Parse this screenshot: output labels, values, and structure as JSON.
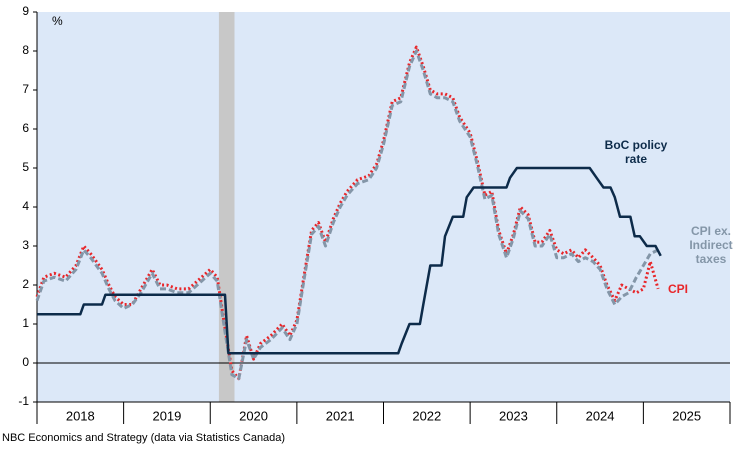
{
  "chart_data": {
    "type": "line",
    "unit_label": "%",
    "source": "NBC Economics and Strategy (data via Statistics Canada)",
    "xlim": [
      2018,
      2026
    ],
    "xticks": [
      2018,
      2019,
      2020,
      2021,
      2022,
      2023,
      2024,
      2025,
      2026
    ],
    "year_labels": [
      2018,
      2019,
      2020,
      2021,
      2022,
      2023,
      2024,
      2025
    ],
    "ylim": [
      -1,
      9
    ],
    "yticks": [
      -1,
      0,
      1,
      2,
      3,
      4,
      5,
      6,
      7,
      8,
      9
    ],
    "zero_line": 0,
    "shaded_ranges": [
      [
        2020.1,
        2020.28
      ]
    ],
    "background": "#dce8f8",
    "x": [
      2018.0,
      2018.08,
      2018.2,
      2018.33,
      2018.45,
      2018.54,
      2018.62,
      2018.75,
      2018.83,
      2018.9,
      2019.0,
      2019.1,
      2019.2,
      2019.33,
      2019.42,
      2019.5,
      2019.62,
      2019.75,
      2019.9,
      2020.0,
      2020.08,
      2020.17,
      2020.25,
      2020.33,
      2020.42,
      2020.5,
      2020.58,
      2020.7,
      2020.83,
      2020.92,
      2021.0,
      2021.08,
      2021.17,
      2021.25,
      2021.33,
      2021.42,
      2021.5,
      2021.58,
      2021.7,
      2021.83,
      2021.92,
      2022.0,
      2022.1,
      2022.2,
      2022.3,
      2022.38,
      2022.46,
      2022.54,
      2022.62,
      2022.71,
      2022.8,
      2022.88,
      2023.0,
      2023.08,
      2023.17,
      2023.25,
      2023.33,
      2023.42,
      2023.5,
      2023.58,
      2023.67,
      2023.75,
      2023.83,
      2023.92,
      2024.0,
      2024.08,
      2024.17,
      2024.25,
      2024.33,
      2024.42,
      2024.5,
      2024.58,
      2024.67,
      2024.75,
      2024.83,
      2024.92,
      2025.0,
      2025.08,
      2025.17
    ],
    "series": [
      {
        "name": [
          "CPI"
        ],
        "color": "#e8262a",
        "dash": "2,2.5",
        "values": [
          1.7,
          2.2,
          2.3,
          2.2,
          2.5,
          3.0,
          2.8,
          2.4,
          2.0,
          1.7,
          1.5,
          1.5,
          1.9,
          2.4,
          2.0,
          2.0,
          1.9,
          1.9,
          2.2,
          2.4,
          2.2,
          0.9,
          -0.2,
          -0.4,
          0.7,
          0.1,
          0.5,
          0.7,
          1.0,
          0.7,
          1.1,
          2.2,
          3.4,
          3.6,
          3.1,
          3.7,
          4.1,
          4.4,
          4.7,
          4.8,
          5.1,
          5.7,
          6.7,
          6.8,
          7.7,
          8.1,
          7.6,
          7.0,
          6.9,
          6.9,
          6.8,
          6.3,
          5.9,
          5.2,
          4.3,
          4.4,
          3.4,
          2.8,
          3.3,
          4.0,
          3.8,
          3.1,
          3.1,
          3.4,
          2.9,
          2.8,
          2.9,
          2.7,
          2.9,
          2.7,
          2.5,
          2.0,
          1.6,
          2.0,
          1.9,
          1.8,
          1.9,
          2.6,
          1.9
        ]
      },
      {
        "name": [
          "CPI ex.",
          "Indirect",
          "taxes"
        ],
        "color": "#8496a8",
        "dash": "6,3",
        "values": [
          1.6,
          2.1,
          2.2,
          2.1,
          2.4,
          2.9,
          2.7,
          2.3,
          1.9,
          1.6,
          1.4,
          1.5,
          1.8,
          2.3,
          1.9,
          1.9,
          1.8,
          1.8,
          2.1,
          2.3,
          2.1,
          0.8,
          -0.3,
          -0.4,
          0.6,
          0.1,
          0.4,
          0.6,
          0.9,
          0.6,
          1.0,
          2.1,
          3.3,
          3.5,
          3.0,
          3.6,
          4.0,
          4.3,
          4.6,
          4.7,
          5.0,
          5.6,
          6.6,
          6.7,
          7.6,
          8.0,
          7.5,
          6.9,
          6.8,
          6.8,
          6.7,
          6.2,
          5.8,
          5.1,
          4.2,
          4.3,
          3.3,
          2.7,
          3.2,
          3.9,
          3.7,
          3.0,
          3.0,
          3.3,
          2.7,
          2.7,
          2.8,
          2.6,
          2.7,
          2.6,
          2.4,
          1.9,
          1.5,
          1.7,
          1.8,
          2.2,
          2.5,
          2.8,
          2.9
        ]
      },
      {
        "name": [
          "BoC policy",
          "rate"
        ],
        "color": "#0d2b4a",
        "dash": "none",
        "x": [
          2018.0,
          2018.5,
          2018.54,
          2018.75,
          2018.79,
          2020.17,
          2020.21,
          2022.17,
          2022.21,
          2022.3,
          2022.42,
          2022.46,
          2022.54,
          2022.67,
          2022.71,
          2022.8,
          2022.92,
          2022.96,
          2023.04,
          2023.42,
          2023.46,
          2023.54,
          2024.38,
          2024.46,
          2024.54,
          2024.62,
          2024.67,
          2024.73,
          2024.85,
          2024.9,
          2024.96,
          2025.04,
          2025.14,
          2025.2
        ],
        "values": [
          1.25,
          1.25,
          1.5,
          1.5,
          1.75,
          1.75,
          0.25,
          0.25,
          0.5,
          1.0,
          1.0,
          1.5,
          2.5,
          2.5,
          3.25,
          3.75,
          3.75,
          4.25,
          4.5,
          4.5,
          4.75,
          5.0,
          5.0,
          4.75,
          4.5,
          4.5,
          4.25,
          3.75,
          3.75,
          3.25,
          3.25,
          3.0,
          3.0,
          2.75
        ]
      }
    ]
  }
}
